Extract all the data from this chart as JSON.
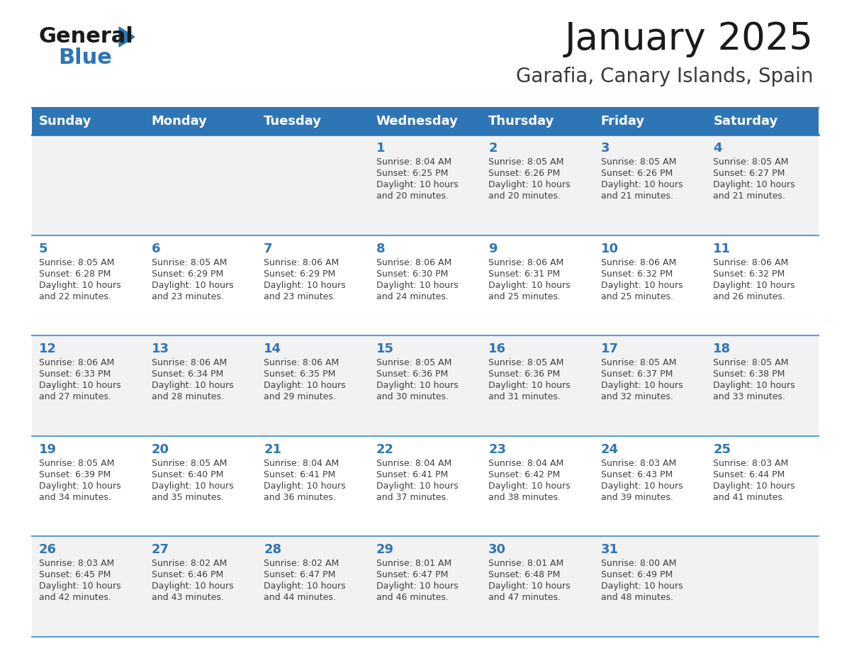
{
  "title": "January 2025",
  "subtitle": "Garafia, Canary Islands, Spain",
  "header_color": "#2e75b6",
  "header_text_color": "#ffffff",
  "cell_bg_even": "#f2f2f2",
  "cell_bg_odd": "#ffffff",
  "day_number_color": "#2e75b6",
  "info_text_color": "#404040",
  "border_color": "#2e75b6",
  "line_color": "#5a9fd4",
  "days_of_week": [
    "Sunday",
    "Monday",
    "Tuesday",
    "Wednesday",
    "Thursday",
    "Friday",
    "Saturday"
  ],
  "calendar_data": [
    [
      {
        "day": "",
        "sunrise": "",
        "sunset": "",
        "daylight": ""
      },
      {
        "day": "",
        "sunrise": "",
        "sunset": "",
        "daylight": ""
      },
      {
        "day": "",
        "sunrise": "",
        "sunset": "",
        "daylight": ""
      },
      {
        "day": "1",
        "sunrise": "8:04 AM",
        "sunset": "6:25 PM",
        "daylight": "10 hours and 20 minutes."
      },
      {
        "day": "2",
        "sunrise": "8:05 AM",
        "sunset": "6:26 PM",
        "daylight": "10 hours and 20 minutes."
      },
      {
        "day": "3",
        "sunrise": "8:05 AM",
        "sunset": "6:26 PM",
        "daylight": "10 hours and 21 minutes."
      },
      {
        "day": "4",
        "sunrise": "8:05 AM",
        "sunset": "6:27 PM",
        "daylight": "10 hours and 21 minutes."
      }
    ],
    [
      {
        "day": "5",
        "sunrise": "8:05 AM",
        "sunset": "6:28 PM",
        "daylight": "10 hours and 22 minutes."
      },
      {
        "day": "6",
        "sunrise": "8:05 AM",
        "sunset": "6:29 PM",
        "daylight": "10 hours and 23 minutes."
      },
      {
        "day": "7",
        "sunrise": "8:06 AM",
        "sunset": "6:29 PM",
        "daylight": "10 hours and 23 minutes."
      },
      {
        "day": "8",
        "sunrise": "8:06 AM",
        "sunset": "6:30 PM",
        "daylight": "10 hours and 24 minutes."
      },
      {
        "day": "9",
        "sunrise": "8:06 AM",
        "sunset": "6:31 PM",
        "daylight": "10 hours and 25 minutes."
      },
      {
        "day": "10",
        "sunrise": "8:06 AM",
        "sunset": "6:32 PM",
        "daylight": "10 hours and 25 minutes."
      },
      {
        "day": "11",
        "sunrise": "8:06 AM",
        "sunset": "6:32 PM",
        "daylight": "10 hours and 26 minutes."
      }
    ],
    [
      {
        "day": "12",
        "sunrise": "8:06 AM",
        "sunset": "6:33 PM",
        "daylight": "10 hours and 27 minutes."
      },
      {
        "day": "13",
        "sunrise": "8:06 AM",
        "sunset": "6:34 PM",
        "daylight": "10 hours and 28 minutes."
      },
      {
        "day": "14",
        "sunrise": "8:06 AM",
        "sunset": "6:35 PM",
        "daylight": "10 hours and 29 minutes."
      },
      {
        "day": "15",
        "sunrise": "8:05 AM",
        "sunset": "6:36 PM",
        "daylight": "10 hours and 30 minutes."
      },
      {
        "day": "16",
        "sunrise": "8:05 AM",
        "sunset": "6:36 PM",
        "daylight": "10 hours and 31 minutes."
      },
      {
        "day": "17",
        "sunrise": "8:05 AM",
        "sunset": "6:37 PM",
        "daylight": "10 hours and 32 minutes."
      },
      {
        "day": "18",
        "sunrise": "8:05 AM",
        "sunset": "6:38 PM",
        "daylight": "10 hours and 33 minutes."
      }
    ],
    [
      {
        "day": "19",
        "sunrise": "8:05 AM",
        "sunset": "6:39 PM",
        "daylight": "10 hours and 34 minutes."
      },
      {
        "day": "20",
        "sunrise": "8:05 AM",
        "sunset": "6:40 PM",
        "daylight": "10 hours and 35 minutes."
      },
      {
        "day": "21",
        "sunrise": "8:04 AM",
        "sunset": "6:41 PM",
        "daylight": "10 hours and 36 minutes."
      },
      {
        "day": "22",
        "sunrise": "8:04 AM",
        "sunset": "6:41 PM",
        "daylight": "10 hours and 37 minutes."
      },
      {
        "day": "23",
        "sunrise": "8:04 AM",
        "sunset": "6:42 PM",
        "daylight": "10 hours and 38 minutes."
      },
      {
        "day": "24",
        "sunrise": "8:03 AM",
        "sunset": "6:43 PM",
        "daylight": "10 hours and 39 minutes."
      },
      {
        "day": "25",
        "sunrise": "8:03 AM",
        "sunset": "6:44 PM",
        "daylight": "10 hours and 41 minutes."
      }
    ],
    [
      {
        "day": "26",
        "sunrise": "8:03 AM",
        "sunset": "6:45 PM",
        "daylight": "10 hours and 42 minutes."
      },
      {
        "day": "27",
        "sunrise": "8:02 AM",
        "sunset": "6:46 PM",
        "daylight": "10 hours and 43 minutes."
      },
      {
        "day": "28",
        "sunrise": "8:02 AM",
        "sunset": "6:47 PM",
        "daylight": "10 hours and 44 minutes."
      },
      {
        "day": "29",
        "sunrise": "8:01 AM",
        "sunset": "6:47 PM",
        "daylight": "10 hours and 46 minutes."
      },
      {
        "day": "30",
        "sunrise": "8:01 AM",
        "sunset": "6:48 PM",
        "daylight": "10 hours and 47 minutes."
      },
      {
        "day": "31",
        "sunrise": "8:00 AM",
        "sunset": "6:49 PM",
        "daylight": "10 hours and 48 minutes."
      },
      {
        "day": "",
        "sunrise": "",
        "sunset": "",
        "daylight": ""
      }
    ]
  ],
  "logo_color_general": "#1a1a1a",
  "logo_color_blue": "#2e75b6",
  "title_fontsize": 38,
  "subtitle_fontsize": 20,
  "header_fontsize": 13,
  "day_fontsize": 13,
  "info_fontsize": 9
}
